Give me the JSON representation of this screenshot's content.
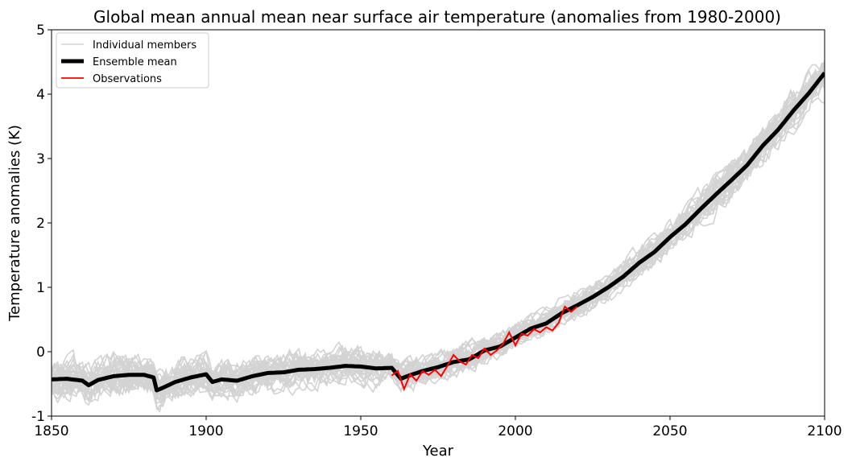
{
  "chart_data": {
    "type": "line",
    "title": "Global mean annual mean near surface air temperature (anomalies from 1980-2000)",
    "xlabel": "Year",
    "ylabel": "Temperature anomalies (K)",
    "xlim": [
      1850,
      2100
    ],
    "ylim": [
      -1,
      5
    ],
    "xticks": [
      1850,
      1900,
      1950,
      2000,
      2050,
      2100
    ],
    "yticks": [
      -1,
      0,
      1,
      2,
      3,
      4,
      5
    ],
    "legend": {
      "placement": "top-left",
      "entries": [
        "Individual members",
        "Ensemble mean",
        "Observations"
      ]
    },
    "grid": false,
    "colors": {
      "members": "#d3d3d3",
      "ensemble": "#000000",
      "observations": "#ff0000"
    },
    "ensemble_mean": {
      "name": "Ensemble mean",
      "x": [
        1850,
        1855,
        1860,
        1862,
        1865,
        1870,
        1875,
        1880,
        1883,
        1884,
        1886,
        1890,
        1895,
        1900,
        1902,
        1905,
        1910,
        1915,
        1920,
        1925,
        1930,
        1935,
        1940,
        1945,
        1950,
        1955,
        1960,
        1963,
        1965,
        1970,
        1975,
        1980,
        1985,
        1990,
        1995,
        2000,
        2005,
        2010,
        2015,
        2020,
        2025,
        2030,
        2035,
        2040,
        2045,
        2050,
        2055,
        2060,
        2065,
        2070,
        2075,
        2080,
        2085,
        2090,
        2095,
        2100
      ],
      "y": [
        -0.43,
        -0.42,
        -0.45,
        -0.52,
        -0.44,
        -0.38,
        -0.36,
        -0.36,
        -0.4,
        -0.6,
        -0.56,
        -0.47,
        -0.4,
        -0.35,
        -0.47,
        -0.43,
        -0.45,
        -0.38,
        -0.33,
        -0.32,
        -0.28,
        -0.27,
        -0.25,
        -0.22,
        -0.23,
        -0.26,
        -0.25,
        -0.42,
        -0.38,
        -0.3,
        -0.24,
        -0.16,
        -0.12,
        0.02,
        0.08,
        0.22,
        0.36,
        0.44,
        0.6,
        0.72,
        0.85,
        1.0,
        1.17,
        1.38,
        1.55,
        1.78,
        1.98,
        2.22,
        2.45,
        2.67,
        2.9,
        3.2,
        3.45,
        3.75,
        4.02,
        4.33
      ]
    },
    "observations": {
      "name": "Observations",
      "x": [
        1960,
        1962,
        1964,
        1966,
        1968,
        1970,
        1972,
        1974,
        1976,
        1978,
        1980,
        1982,
        1984,
        1986,
        1988,
        1990,
        1992,
        1994,
        1996,
        1998,
        2000,
        2002,
        2004,
        2006,
        2008,
        2010,
        2012,
        2014,
        2016,
        2018,
        2020
      ],
      "y": [
        -0.37,
        -0.3,
        -0.58,
        -0.35,
        -0.45,
        -0.3,
        -0.36,
        -0.28,
        -0.38,
        -0.22,
        -0.05,
        -0.15,
        -0.2,
        -0.05,
        -0.1,
        0.05,
        -0.05,
        0.02,
        0.12,
        0.3,
        0.1,
        0.28,
        0.25,
        0.35,
        0.3,
        0.38,
        0.33,
        0.45,
        0.7,
        0.62,
        0.7
      ]
    },
    "members_spread": {
      "name": "Individual members",
      "x": [
        1850,
        1900,
        1950,
        1960,
        2000,
        2050,
        2100
      ],
      "y_low": [
        -0.8,
        -0.7,
        -0.5,
        -0.55,
        0.0,
        1.5,
        4.0
      ],
      "y_high": [
        -0.1,
        0.0,
        0.1,
        0.0,
        0.45,
        2.05,
        4.75
      ]
    }
  }
}
